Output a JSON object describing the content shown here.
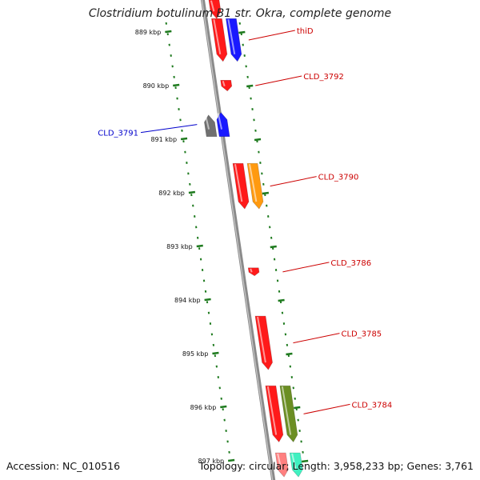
{
  "title": "Clostridium botulinum B1 str. Okra, complete genome",
  "footer": {
    "accession": "Accession: NC_010516",
    "summary": "Topology: circular; Length: 3,958,233 bp; Genes: 3,761"
  },
  "colors": {
    "backbone": "#8a8a8a",
    "tick": "#1e7a1e",
    "label_red": "#cc0000",
    "label_blue": "#0000cc"
  },
  "ticks": [
    {
      "label": "889 kbp",
      "kbp": 889
    },
    {
      "label": "890 kbp",
      "kbp": 890
    },
    {
      "label": "891 kbp",
      "kbp": 891
    },
    {
      "label": "892 kbp",
      "kbp": 892
    },
    {
      "label": "893 kbp",
      "kbp": 893
    },
    {
      "label": "894 kbp",
      "kbp": 894
    },
    {
      "label": "895 kbp",
      "kbp": 895
    },
    {
      "label": "896 kbp",
      "kbp": 896
    },
    {
      "label": "897 kbp",
      "kbp": 897
    }
  ],
  "genes": [
    {
      "name": "",
      "color": "#ff1a1a",
      "strand": "+",
      "kbp_start": 888.4,
      "kbp_end": 888.75,
      "labeled": false
    },
    {
      "name": "thiD",
      "color": "#ff1a1a",
      "strand": "+",
      "kbp_start": 888.75,
      "kbp_end": 889.55,
      "labeled": true
    },
    {
      "name": "",
      "color": "#1a1aff",
      "strand": "+",
      "kbp_start": 888.75,
      "kbp_end": 889.55,
      "labeled": false
    },
    {
      "name": "CLD_3792",
      "color": "#ff1a1a",
      "strand": "+",
      "kbp_start": 889.9,
      "kbp_end": 890.1,
      "labeled": true
    },
    {
      "name": "",
      "color": "#707070",
      "strand": "-",
      "kbp_start": 890.55,
      "kbp_end": 890.95,
      "labeled": false
    },
    {
      "name": "CLD_3791",
      "color": "#1a1aff",
      "strand": "-",
      "kbp_start": 890.5,
      "kbp_end": 890.95,
      "labeled": true
    },
    {
      "name": "",
      "color": "#ff1a1a",
      "strand": "+",
      "kbp_start": 891.45,
      "kbp_end": 892.3,
      "labeled": false
    },
    {
      "name": "CLD_3790",
      "color": "#ff9a10",
      "strand": "+",
      "kbp_start": 891.45,
      "kbp_end": 892.3,
      "labeled": true
    },
    {
      "name": "CLD_3786",
      "color": "#ff1a1a",
      "strand": "+",
      "kbp_start": 893.4,
      "kbp_end": 893.55,
      "labeled": true
    },
    {
      "name": "CLD_3785",
      "color": "#ff1a1a",
      "strand": "+",
      "kbp_start": 894.3,
      "kbp_end": 895.3,
      "labeled": true
    },
    {
      "name": "",
      "color": "#ff1a1a",
      "strand": "+",
      "kbp_start": 895.6,
      "kbp_end": 896.65,
      "labeled": false
    },
    {
      "name": "CLD_3784",
      "color": "#6b8e23",
      "strand": "+",
      "kbp_start": 895.6,
      "kbp_end": 896.65,
      "labeled": true
    },
    {
      "name": "",
      "color": "#ff8080",
      "strand": "+",
      "kbp_start": 896.85,
      "kbp_end": 897.3,
      "labeled": false
    },
    {
      "name": "",
      "color": "#40f0c0",
      "strand": "+",
      "kbp_start": 896.85,
      "kbp_end": 897.3,
      "labeled": false
    }
  ]
}
